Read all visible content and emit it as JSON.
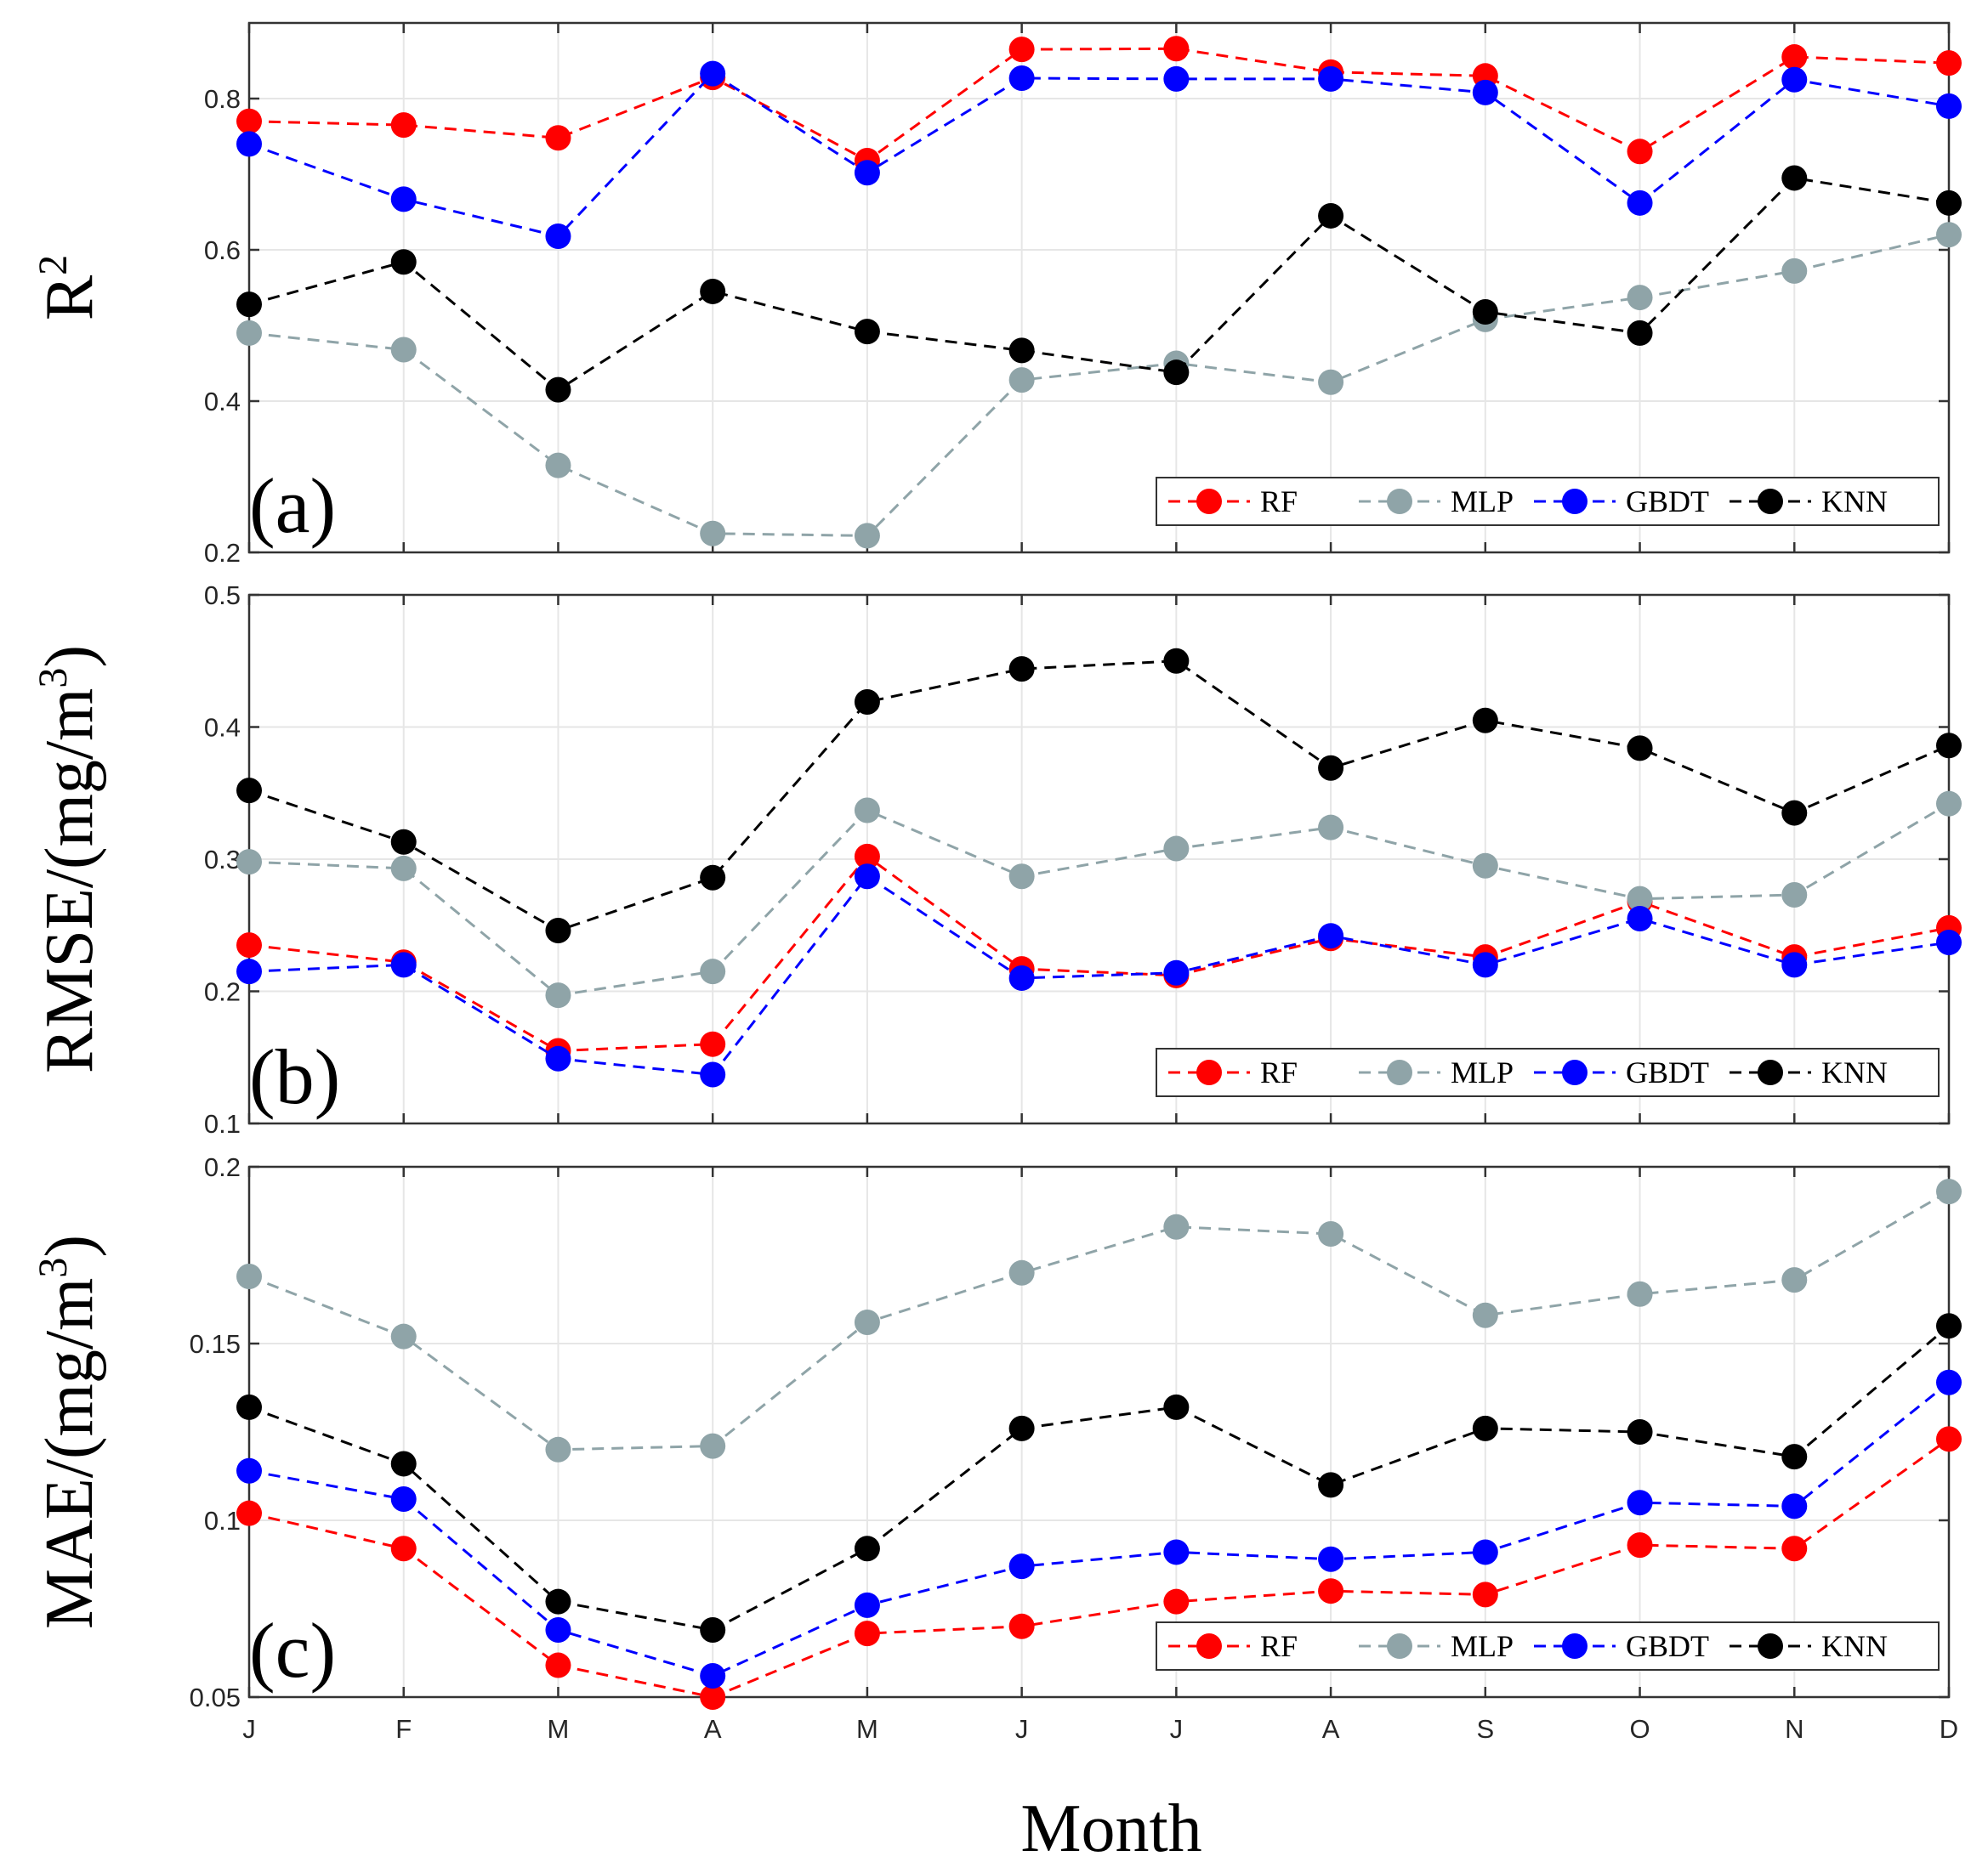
{
  "x_label": "Month",
  "chart_data": [
    {
      "type": "line",
      "tag": "(a)",
      "ylabel": "R",
      "ylabel_sup": "2",
      "ylabel_suffix": "",
      "categories": [
        "J",
        "F",
        "M",
        "A",
        "M",
        "J",
        "J",
        "A",
        "S",
        "O",
        "N",
        "D"
      ],
      "ylim": [
        0.2,
        0.9
      ],
      "yticks": [
        0.2,
        0.4,
        0.6,
        0.8
      ],
      "ytick_labels": [
        "0.2",
        "0.4",
        "0.6",
        "0.8"
      ],
      "grid": true,
      "legend": "bottom-right",
      "series": [
        {
          "name": "RF",
          "color": "#ff0000",
          "values": [
            0.77,
            0.765,
            0.748,
            0.828,
            0.718,
            0.865,
            0.866,
            0.835,
            0.83,
            0.73,
            0.855,
            0.847
          ]
        },
        {
          "name": "MLP",
          "color": "#8fa4a8",
          "values": [
            0.49,
            0.468,
            0.315,
            0.225,
            0.222,
            0.428,
            0.45,
            0.425,
            0.508,
            0.537,
            0.572,
            0.62
          ]
        },
        {
          "name": "GBDT",
          "color": "#0000ff",
          "values": [
            0.74,
            0.667,
            0.618,
            0.833,
            0.702,
            0.827,
            0.826,
            0.826,
            0.808,
            0.662,
            0.825,
            0.79
          ]
        },
        {
          "name": "KNN",
          "color": "#000000",
          "values": [
            0.528,
            0.584,
            0.415,
            0.545,
            0.492,
            0.467,
            0.438,
            0.645,
            0.518,
            0.49,
            0.695,
            0.662
          ]
        }
      ]
    },
    {
      "type": "line",
      "tag": "(b)",
      "ylabel": "RMSE/(mg/m",
      "ylabel_sup": "3",
      "ylabel_suffix": ")",
      "categories": [
        "J",
        "F",
        "M",
        "A",
        "M",
        "J",
        "J",
        "A",
        "S",
        "O",
        "N",
        "D"
      ],
      "ylim": [
        0.1,
        0.5
      ],
      "yticks": [
        0.1,
        0.2,
        0.3,
        0.4,
        0.5
      ],
      "ytick_labels": [
        "0.1",
        "0.2",
        "0.3",
        "0.4",
        "0.5"
      ],
      "grid": true,
      "legend": "bottom-right",
      "series": [
        {
          "name": "RF",
          "color": "#ff0000",
          "values": [
            0.235,
            0.222,
            0.155,
            0.16,
            0.302,
            0.217,
            0.212,
            0.24,
            0.226,
            0.268,
            0.226,
            0.248
          ]
        },
        {
          "name": "MLP",
          "color": "#8fa4a8",
          "values": [
            0.298,
            0.293,
            0.197,
            0.215,
            0.337,
            0.287,
            0.308,
            0.324,
            0.295,
            0.27,
            0.273,
            0.342
          ]
        },
        {
          "name": "GBDT",
          "color": "#0000ff",
          "values": [
            0.215,
            0.22,
            0.149,
            0.137,
            0.287,
            0.21,
            0.214,
            0.242,
            0.22,
            0.255,
            0.22,
            0.237
          ]
        },
        {
          "name": "KNN",
          "color": "#000000",
          "values": [
            0.352,
            0.313,
            0.246,
            0.286,
            0.419,
            0.444,
            0.45,
            0.369,
            0.405,
            0.384,
            0.335,
            0.386
          ]
        }
      ]
    },
    {
      "type": "line",
      "tag": "(c)",
      "ylabel": "MAE/(mg/m",
      "ylabel_sup": "3",
      "ylabel_suffix": ")",
      "categories": [
        "J",
        "F",
        "M",
        "A",
        "M",
        "J",
        "J",
        "A",
        "S",
        "O",
        "N",
        "D"
      ],
      "ylim": [
        0.05,
        0.2
      ],
      "yticks": [
        0.05,
        0.1,
        0.15,
        0.2
      ],
      "ytick_labels": [
        "0.05",
        "0.1",
        "0.15",
        "0.2"
      ],
      "grid": true,
      "legend": "bottom-right",
      "series": [
        {
          "name": "RF",
          "color": "#ff0000",
          "values": [
            0.102,
            0.092,
            0.059,
            0.05,
            0.068,
            0.07,
            0.077,
            0.08,
            0.079,
            0.093,
            0.092,
            0.123
          ]
        },
        {
          "name": "MLP",
          "color": "#8fa4a8",
          "values": [
            0.169,
            0.152,
            0.12,
            0.121,
            0.156,
            0.17,
            0.183,
            0.181,
            0.158,
            0.164,
            0.168,
            0.193
          ]
        },
        {
          "name": "GBDT",
          "color": "#0000ff",
          "values": [
            0.114,
            0.106,
            0.069,
            0.056,
            0.076,
            0.087,
            0.091,
            0.089,
            0.091,
            0.105,
            0.104,
            0.139
          ]
        },
        {
          "name": "KNN",
          "color": "#000000",
          "values": [
            0.132,
            0.116,
            0.077,
            0.069,
            0.092,
            0.126,
            0.132,
            0.11,
            0.126,
            0.125,
            0.118,
            0.155
          ]
        }
      ]
    }
  ]
}
